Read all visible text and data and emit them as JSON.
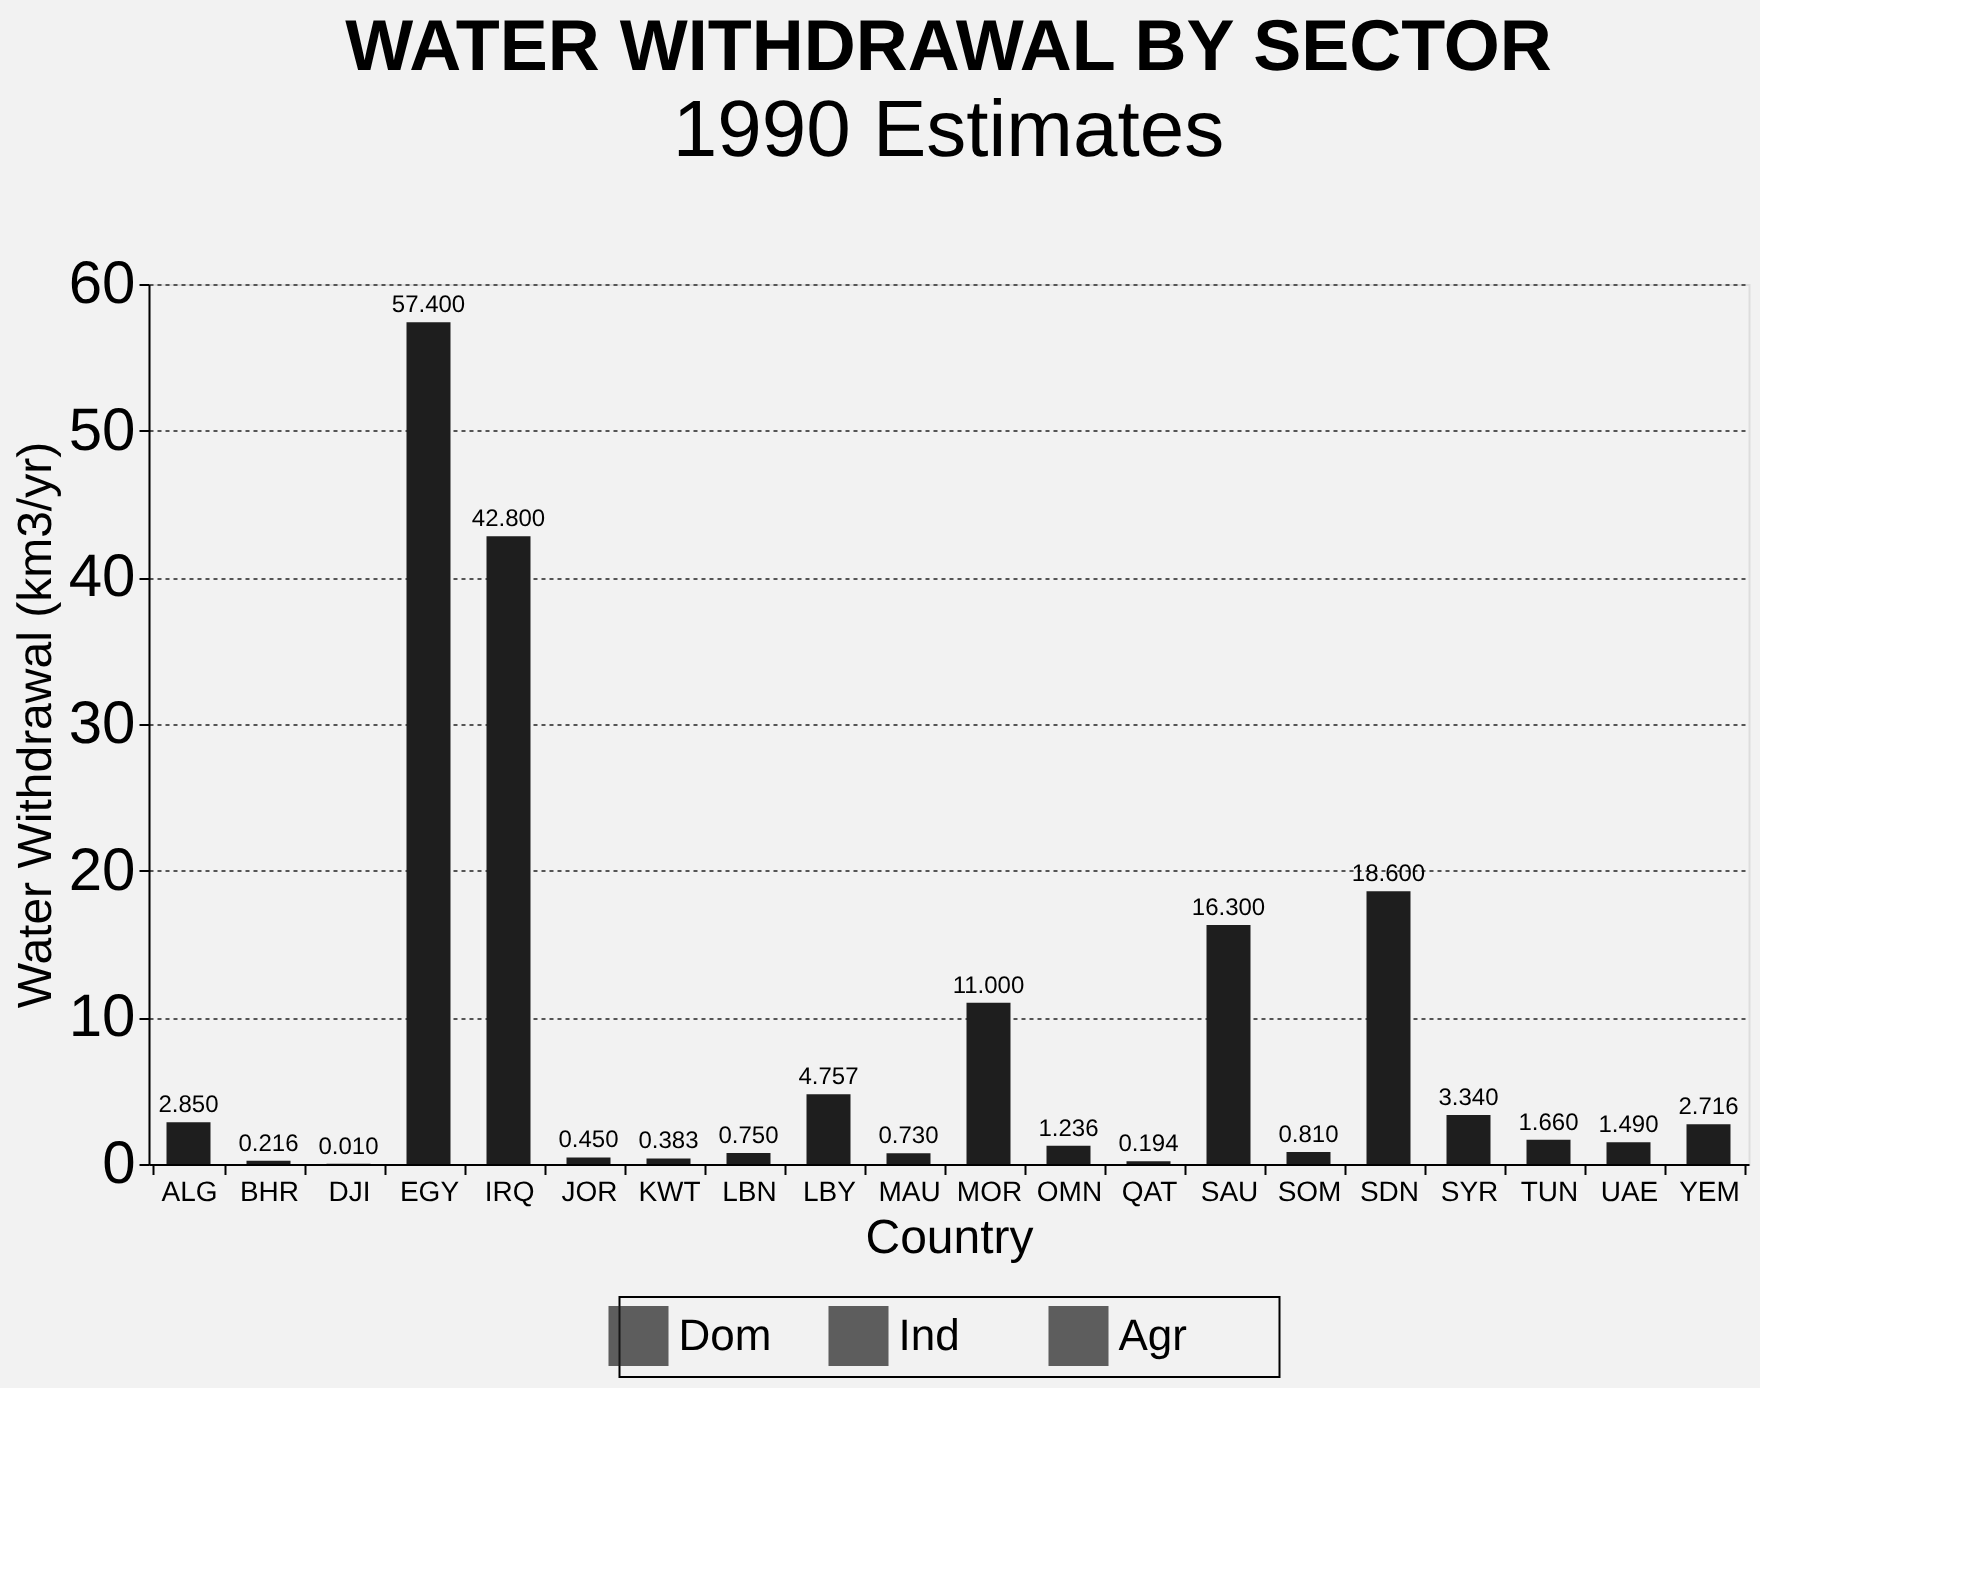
{
  "chart_data": {
    "type": "bar",
    "title": "WATER WITHDRAWAL BY SECTOR",
    "subtitle": "1990 Estimates",
    "xlabel": "Country",
    "ylabel": "Water Withdrawal (km3/yr)",
    "categories": [
      "ALG",
      "BHR",
      "DJI",
      "EGY",
      "IRQ",
      "JOR",
      "KWT",
      "LBN",
      "LBY",
      "MAU",
      "MOR",
      "OMN",
      "QAT",
      "SAU",
      "SOM",
      "SDN",
      "SYR",
      "TUN",
      "UAE",
      "YEM"
    ],
    "series": [
      {
        "color": "#1e1e1e",
        "values": [
          2.85,
          0.216,
          0.01,
          57.4,
          42.8,
          0.45,
          0.383,
          0.75,
          4.757,
          0.73,
          11.0,
          1.236,
          0.194,
          16.3,
          0.81,
          18.6,
          3.34,
          1.66,
          1.49,
          2.716
        ],
        "value_labels": [
          "2.850",
          "0.216",
          "0.010",
          "57.400",
          "42.800",
          "0.450",
          "0.383",
          "0.750",
          "4.757",
          "0.730",
          "11.000",
          "1.236",
          "0.194",
          "16.300",
          "0.810",
          "18.600",
          "3.340",
          "1.660",
          "1.490",
          "2.716"
        ]
      },
      {
        "name": "Dom",
        "color": "#1e1e1e",
        "values": [
          null,
          null,
          null,
          null,
          null,
          null,
          null,
          null,
          null,
          null,
          null,
          null,
          null,
          null,
          null,
          null,
          null,
          null,
          null,
          null
        ]
      },
      {
        "name": "Ind",
        "color": "#1e1e1e",
        "values": [
          null,
          null,
          null,
          null,
          null,
          null,
          null,
          null,
          null,
          null,
          null,
          null,
          null,
          null,
          null,
          null,
          null,
          null,
          null,
          null
        ]
      },
      {
        "name": "Agr",
        "color": "#1e1e1e",
        "values": [
          null,
          null,
          null,
          null,
          null,
          null,
          null,
          null,
          null,
          null,
          null,
          null,
          null,
          null,
          null,
          null,
          null,
          null,
          null,
          null
        ]
      }
    ],
    "ylim": [
      0,
      60
    ],
    "yticks": [
      0,
      10,
      20,
      30,
      40,
      50,
      60
    ],
    "grid": "y",
    "legend": "bottom"
  }
}
